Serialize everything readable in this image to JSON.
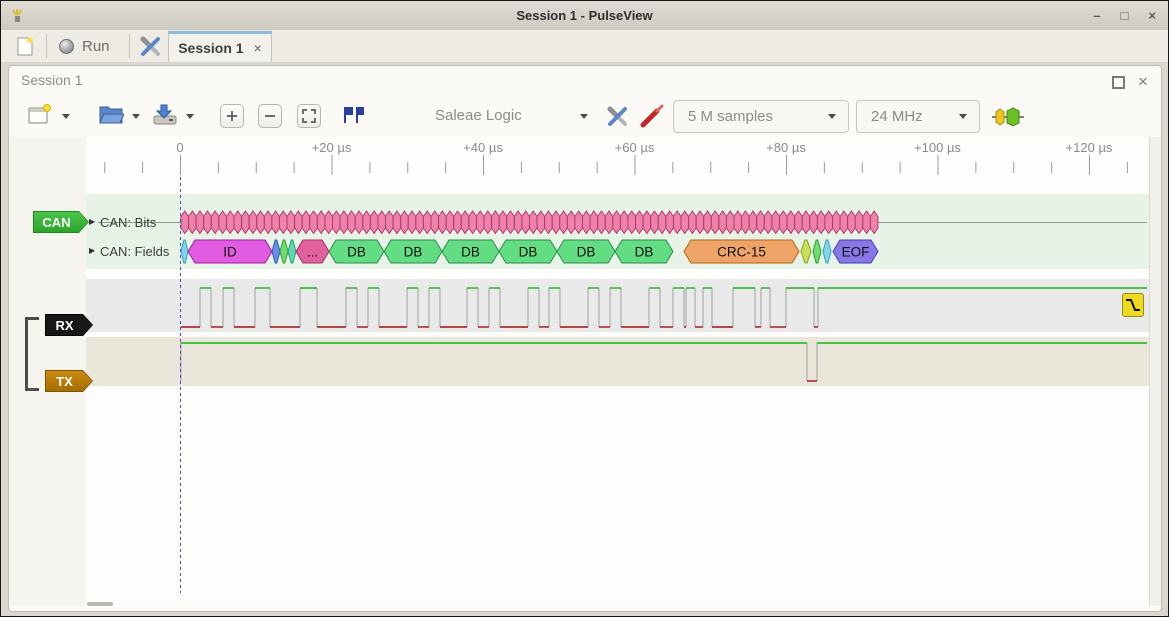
{
  "title_bar": {
    "title": "Session 1 - PulseView",
    "minimize": "–",
    "maximize": "□",
    "close": "×"
  },
  "main_toolbar": {
    "run": "Run",
    "tab_label": "Session 1",
    "tab_close": "×"
  },
  "session": {
    "title": "Session 1",
    "close": "×",
    "device": "Saleae Logic",
    "samples": "5 M samples",
    "rate": "24 MHz"
  },
  "ruler": {
    "unit": "µs",
    "labels": [
      "0",
      "+20 µs",
      "+40 µs",
      "+60 µs",
      "+80 µs",
      "+100 µs",
      "+120 µs"
    ]
  },
  "colors": {
    "decode_band": "#e8f3e8",
    "rx_band": "#e9e9e9",
    "tx_band": "#ebe6da",
    "cursor": "#4747d6",
    "trigger": "#eeda1e",
    "signal_high": "#14b614",
    "signal_low": "#9e1313",
    "signal_edge": "#ababab"
  },
  "chart_data": {
    "type": "logic-analyzer-traces",
    "time_unit": "µs",
    "visible_range_us": [
      -12.0,
      127.66
    ],
    "tick_step_us": 20,
    "minor_tick_us": 5,
    "decoder": {
      "tag": "CAN",
      "tag_color": "#2fae2f",
      "rows": [
        {
          "label": "CAN: Bits"
        },
        {
          "label": "CAN: Fields"
        }
      ],
      "bits": {
        "start_us": 0.13,
        "end_us": 92.14,
        "count": 92,
        "fill": "#ee82aa",
        "stroke": "#b03a6a"
      },
      "fields": [
        {
          "name": "sof",
          "label": "",
          "start_us": 0.13,
          "end_us": 1.06,
          "fill": "#7dd7ea",
          "stroke": "#3a9ab5"
        },
        {
          "name": "id",
          "label": "ID",
          "start_us": 1.06,
          "end_us": 12.15,
          "fill": "#e15ce1",
          "stroke": "#a11ca1"
        },
        {
          "name": "rtr",
          "label": "",
          "start_us": 12.15,
          "end_us": 13.2,
          "fill": "#6b8fe8",
          "stroke": "#2d55b8"
        },
        {
          "name": "ide",
          "label": "",
          "start_us": 13.2,
          "end_us": 14.26,
          "fill": "#70dc70",
          "stroke": "#2f9e2f"
        },
        {
          "name": "res",
          "label": "",
          "start_us": 14.26,
          "end_us": 15.31,
          "fill": "#5fd8b0",
          "stroke": "#2a9a76"
        },
        {
          "name": "dlc",
          "label": "...",
          "start_us": 15.31,
          "end_us": 19.67,
          "fill": "#e0619e",
          "stroke": "#a82a64"
        },
        {
          "name": "db",
          "label": "DB",
          "start_us": 19.67,
          "end_us": 26.93,
          "fill": "#63dd84",
          "stroke": "#2d8b4f"
        },
        {
          "name": "db",
          "label": "DB",
          "start_us": 26.93,
          "end_us": 34.59,
          "fill": "#63dd84",
          "stroke": "#2d8b4f"
        },
        {
          "name": "db",
          "label": "DB",
          "start_us": 34.59,
          "end_us": 42.11,
          "fill": "#63dd84",
          "stroke": "#2d8b4f"
        },
        {
          "name": "db",
          "label": "DB",
          "start_us": 42.11,
          "end_us": 49.77,
          "fill": "#63dd84",
          "stroke": "#2d8b4f"
        },
        {
          "name": "db",
          "label": "DB",
          "start_us": 49.77,
          "end_us": 57.43,
          "fill": "#63dd84",
          "stroke": "#2d8b4f"
        },
        {
          "name": "db",
          "label": "DB",
          "start_us": 57.43,
          "end_us": 65.08,
          "fill": "#63dd84",
          "stroke": "#2d8b4f"
        },
        {
          "name": "crc15",
          "label": "CRC-15",
          "start_us": 66.53,
          "end_us": 81.72,
          "fill": "#eda466",
          "stroke": "#b5660f"
        },
        {
          "name": "crcdel",
          "label": "",
          "start_us": 81.98,
          "end_us": 83.3,
          "fill": "#c8e05b",
          "stroke": "#8aa016"
        },
        {
          "name": "ack",
          "label": "",
          "start_us": 83.56,
          "end_us": 84.62,
          "fill": "#70dc70",
          "stroke": "#2f9e2f"
        },
        {
          "name": "ackdel",
          "label": "",
          "start_us": 84.88,
          "end_us": 85.94,
          "fill": "#7dd7ea",
          "stroke": "#3a9ab5"
        },
        {
          "name": "eof",
          "label": "EOF",
          "start_us": 86.2,
          "end_us": 92.14,
          "fill": "#8878e8",
          "stroke": "#4a38b0"
        }
      ]
    },
    "rx": {
      "tag": "RX",
      "tag_color": "#111111",
      "start_us": 0.11,
      "trigger": "falling-edge",
      "high_intervals_us": [
        [
          2.64,
          4.09
        ],
        [
          5.68,
          7.13
        ],
        [
          9.9,
          11.88
        ],
        [
          15.84,
          18.09
        ],
        [
          21.91,
          23.37
        ],
        [
          24.82,
          26.27
        ],
        [
          29.97,
          31.42
        ],
        [
          32.87,
          34.32
        ],
        [
          37.89,
          39.34
        ],
        [
          40.79,
          42.24
        ],
        [
          45.94,
          47.39
        ],
        [
          48.71,
          50.16
        ],
        [
          53.86,
          55.31
        ],
        [
          56.77,
          58.22
        ],
        [
          61.91,
          63.37
        ],
        [
          65.08,
          66.53
        ],
        [
          66.8,
          67.99
        ],
        [
          69.04,
          70.23
        ],
        [
          73.0,
          75.91
        ],
        [
          76.7,
          77.89
        ],
        [
          80.0,
          83.7
        ],
        [
          84.22,
          127.66
        ]
      ]
    },
    "tx": {
      "tag": "TX",
      "tag_color": "#b87a10",
      "start_us": 0.11,
      "high_intervals_us": [
        [
          0.11,
          82.77
        ],
        [
          84.09,
          127.66
        ]
      ]
    }
  }
}
